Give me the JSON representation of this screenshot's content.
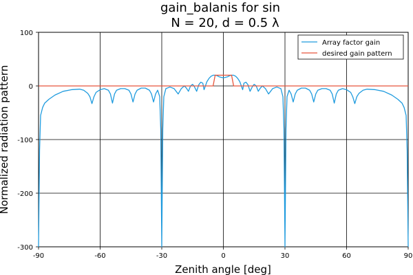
{
  "chart_data": {
    "type": "line",
    "title": "gain_balanis for sin",
    "subtitle": "N = 20,  d = 0.5 λ",
    "xlabel": "Zenith angle [deg]",
    "ylabel": "Normalized radiation pattern",
    "xlim": [
      -90,
      90
    ],
    "ylim": [
      -300,
      100
    ],
    "xticks": [
      -90,
      -60,
      -30,
      0,
      30,
      60,
      90
    ],
    "yticks": [
      -300,
      -200,
      -100,
      0,
      100
    ],
    "xtick_labels": [
      "-90",
      "-60",
      "-30",
      "0",
      "30",
      "60",
      "90"
    ],
    "ytick_labels": [
      "-300",
      "-200",
      "-100",
      "0",
      "100"
    ],
    "grid": true,
    "legend_position": "top-right",
    "series": [
      {
        "name": "Array factor gain",
        "color": "#1f9bde",
        "x": [
          -90,
          -89.5,
          -89,
          -88,
          -87,
          -85,
          -82,
          -78,
          -74,
          -70,
          -68,
          -66,
          -65,
          -64,
          -63,
          -62,
          -60,
          -58,
          -56,
          -55,
          -54,
          -53,
          -52,
          -50,
          -48,
          -46,
          -45,
          -44,
          -43,
          -42,
          -40,
          -38,
          -36,
          -35,
          -34,
          -33,
          -32,
          -31,
          -30.5,
          -30,
          -29.5,
          -29,
          -28,
          -26,
          -24,
          -23,
          -22,
          -20.5,
          -19,
          -18,
          -17,
          -16,
          -15,
          -14.3,
          -13,
          -12,
          -11,
          -10,
          -9.4,
          -8,
          -7,
          -6,
          -5,
          -4,
          -3,
          -2,
          -1,
          0,
          1,
          2,
          3,
          4,
          5,
          6,
          7,
          8,
          9.4,
          10,
          11,
          12,
          13,
          14.3,
          15,
          16,
          17,
          18,
          19,
          20.5,
          22,
          23,
          24,
          26,
          28,
          29,
          29.5,
          30,
          30.5,
          31,
          32,
          33,
          34,
          35,
          36,
          38,
          40,
          42,
          43,
          44,
          45,
          46,
          48,
          50,
          52,
          53,
          54,
          55,
          56,
          58,
          60,
          62,
          63,
          64,
          65,
          66,
          68,
          70,
          74,
          78,
          82,
          85,
          87,
          88,
          89,
          89.5,
          90
        ],
        "values": [
          -300,
          -120,
          -55,
          -40,
          -32,
          -25,
          -17,
          -10,
          -7,
          -6,
          -8,
          -14,
          -20,
          -33,
          -20,
          -12,
          -7,
          -5,
          -8,
          -15,
          -32,
          -15,
          -8,
          -5,
          -5,
          -8,
          -15,
          -30,
          -15,
          -8,
          -4,
          -4,
          -8,
          -15,
          -30,
          -15,
          -8,
          -20,
          -80,
          -300,
          -80,
          -20,
          -5,
          -2,
          -5,
          -10,
          -15,
          -5,
          0,
          -4,
          -10,
          0,
          3,
          0,
          -10,
          2,
          7,
          5,
          -7,
          8,
          14,
          18,
          20,
          20,
          19,
          17,
          16,
          15,
          16,
          17,
          19,
          20,
          20,
          18,
          14,
          8,
          -7,
          5,
          7,
          2,
          -10,
          0,
          3,
          0,
          -10,
          -4,
          0,
          -5,
          -15,
          -10,
          -5,
          -2,
          -5,
          -20,
          -80,
          -300,
          -80,
          -20,
          -8,
          -15,
          -30,
          -15,
          -8,
          -4,
          -4,
          -8,
          -15,
          -30,
          -15,
          -8,
          -5,
          -5,
          -8,
          -15,
          -32,
          -15,
          -8,
          -5,
          -7,
          -12,
          -20,
          -33,
          -20,
          -14,
          -8,
          -6,
          -7,
          -10,
          -17,
          -25,
          -32,
          -40,
          -55,
          -120,
          -300
        ]
      },
      {
        "name": "desired gain pattern",
        "color": "#e8543a",
        "x": [
          -90,
          -5,
          -4,
          4,
          5,
          90
        ],
        "values": [
          0,
          0,
          20,
          20,
          0,
          0
        ]
      }
    ]
  }
}
